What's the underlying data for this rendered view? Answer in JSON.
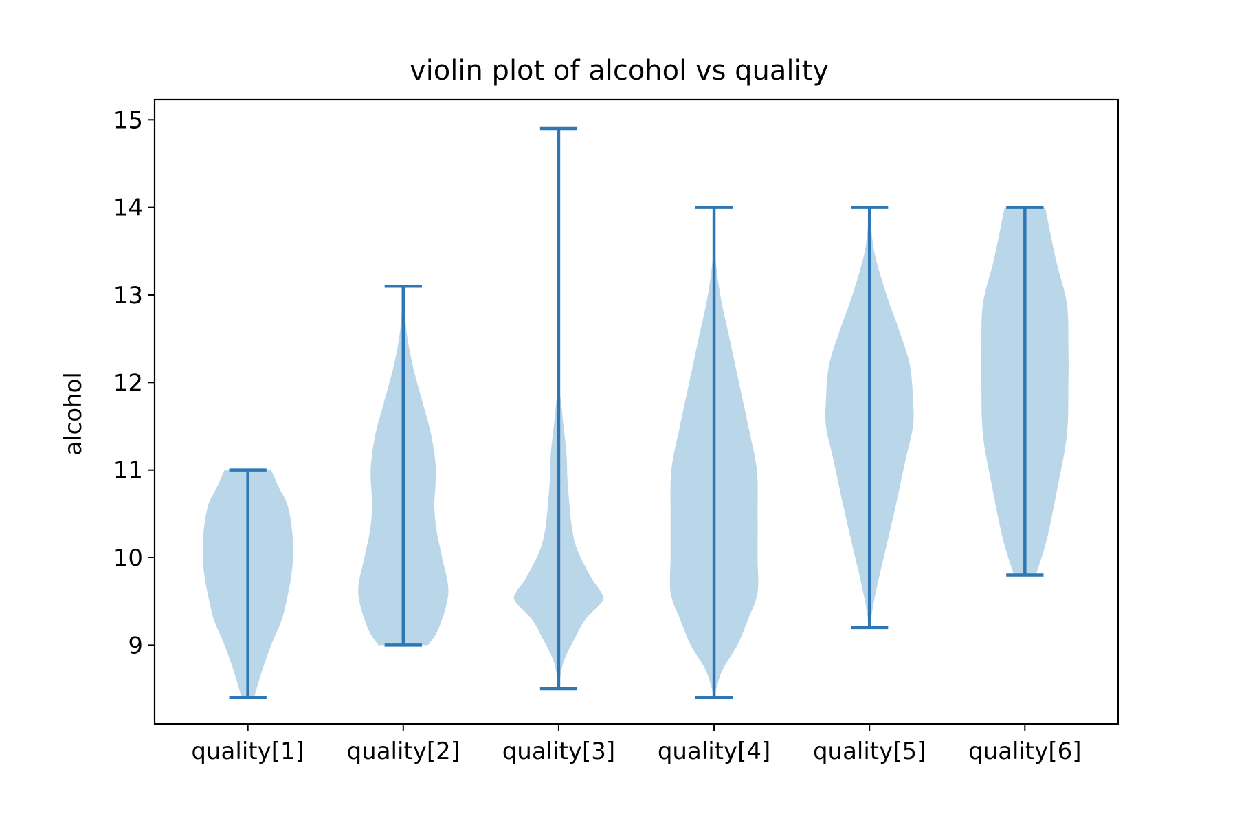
{
  "chart_data": {
    "type": "violin",
    "title": "violin plot of alcohol vs quality",
    "xlabel": "",
    "ylabel": "alcohol",
    "categories": [
      "quality[1]",
      "quality[2]",
      "quality[3]",
      "quality[4]",
      "quality[5]",
      "quality[6]"
    ],
    "ylim": [
      8.1,
      15.23
    ],
    "yticks": [
      9,
      10,
      11,
      12,
      13,
      14,
      15
    ],
    "grid": false,
    "colors": {
      "body": "#bad6e9",
      "line": "#2f77b4"
    },
    "series": [
      {
        "category": "quality[1]",
        "min": 8.4,
        "max": 11.0,
        "density": [
          [
            8.4,
            0.08
          ],
          [
            8.7,
            0.18
          ],
          [
            9.0,
            0.3
          ],
          [
            9.3,
            0.44
          ],
          [
            9.6,
            0.52
          ],
          [
            9.8,
            0.56
          ],
          [
            10.0,
            0.58
          ],
          [
            10.3,
            0.57
          ],
          [
            10.6,
            0.51
          ],
          [
            10.8,
            0.4
          ],
          [
            11.0,
            0.3
          ]
        ]
      },
      {
        "category": "quality[2]",
        "min": 9.0,
        "max": 13.1,
        "density": [
          [
            9.0,
            0.32
          ],
          [
            9.2,
            0.46
          ],
          [
            9.6,
            0.58
          ],
          [
            10.0,
            0.5
          ],
          [
            10.3,
            0.43
          ],
          [
            10.6,
            0.4
          ],
          [
            11.0,
            0.42
          ],
          [
            11.4,
            0.36
          ],
          [
            11.8,
            0.24
          ],
          [
            12.2,
            0.12
          ],
          [
            12.6,
            0.04
          ],
          [
            13.1,
            0.0
          ]
        ]
      },
      {
        "category": "quality[3]",
        "min": 8.5,
        "max": 14.9,
        "density": [
          [
            8.5,
            0.0
          ],
          [
            8.8,
            0.06
          ],
          [
            9.1,
            0.22
          ],
          [
            9.3,
            0.35
          ],
          [
            9.5,
            0.56
          ],
          [
            9.6,
            0.55
          ],
          [
            9.8,
            0.4
          ],
          [
            10.2,
            0.2
          ],
          [
            10.8,
            0.12
          ],
          [
            11.2,
            0.1
          ],
          [
            11.7,
            0.04
          ],
          [
            12.3,
            0.0
          ],
          [
            14.9,
            0.0
          ]
        ]
      },
      {
        "category": "quality[4]",
        "min": 8.4,
        "max": 14.0,
        "density": [
          [
            8.4,
            0.0
          ],
          [
            8.7,
            0.1
          ],
          [
            9.0,
            0.3
          ],
          [
            9.3,
            0.44
          ],
          [
            9.6,
            0.56
          ],
          [
            10.0,
            0.56
          ],
          [
            10.5,
            0.56
          ],
          [
            11.0,
            0.55
          ],
          [
            11.5,
            0.44
          ],
          [
            12.0,
            0.32
          ],
          [
            12.5,
            0.2
          ],
          [
            13.0,
            0.08
          ],
          [
            13.5,
            0.01
          ],
          [
            14.0,
            0.0
          ]
        ]
      },
      {
        "category": "quality[5]",
        "min": 9.2,
        "max": 14.0,
        "density": [
          [
            9.2,
            0.0
          ],
          [
            9.6,
            0.08
          ],
          [
            10.1,
            0.21
          ],
          [
            10.6,
            0.34
          ],
          [
            11.1,
            0.46
          ],
          [
            11.5,
            0.56
          ],
          [
            11.8,
            0.56
          ],
          [
            12.2,
            0.52
          ],
          [
            12.6,
            0.38
          ],
          [
            13.0,
            0.22
          ],
          [
            13.5,
            0.06
          ],
          [
            14.0,
            0.0
          ]
        ]
      },
      {
        "category": "quality[6]",
        "min": 9.8,
        "max": 14.0,
        "density": [
          [
            9.8,
            0.14
          ],
          [
            10.2,
            0.28
          ],
          [
            10.8,
            0.42
          ],
          [
            11.4,
            0.54
          ],
          [
            12.0,
            0.56
          ],
          [
            12.4,
            0.56
          ],
          [
            12.9,
            0.54
          ],
          [
            13.4,
            0.4
          ],
          [
            14.0,
            0.26
          ]
        ]
      }
    ]
  }
}
